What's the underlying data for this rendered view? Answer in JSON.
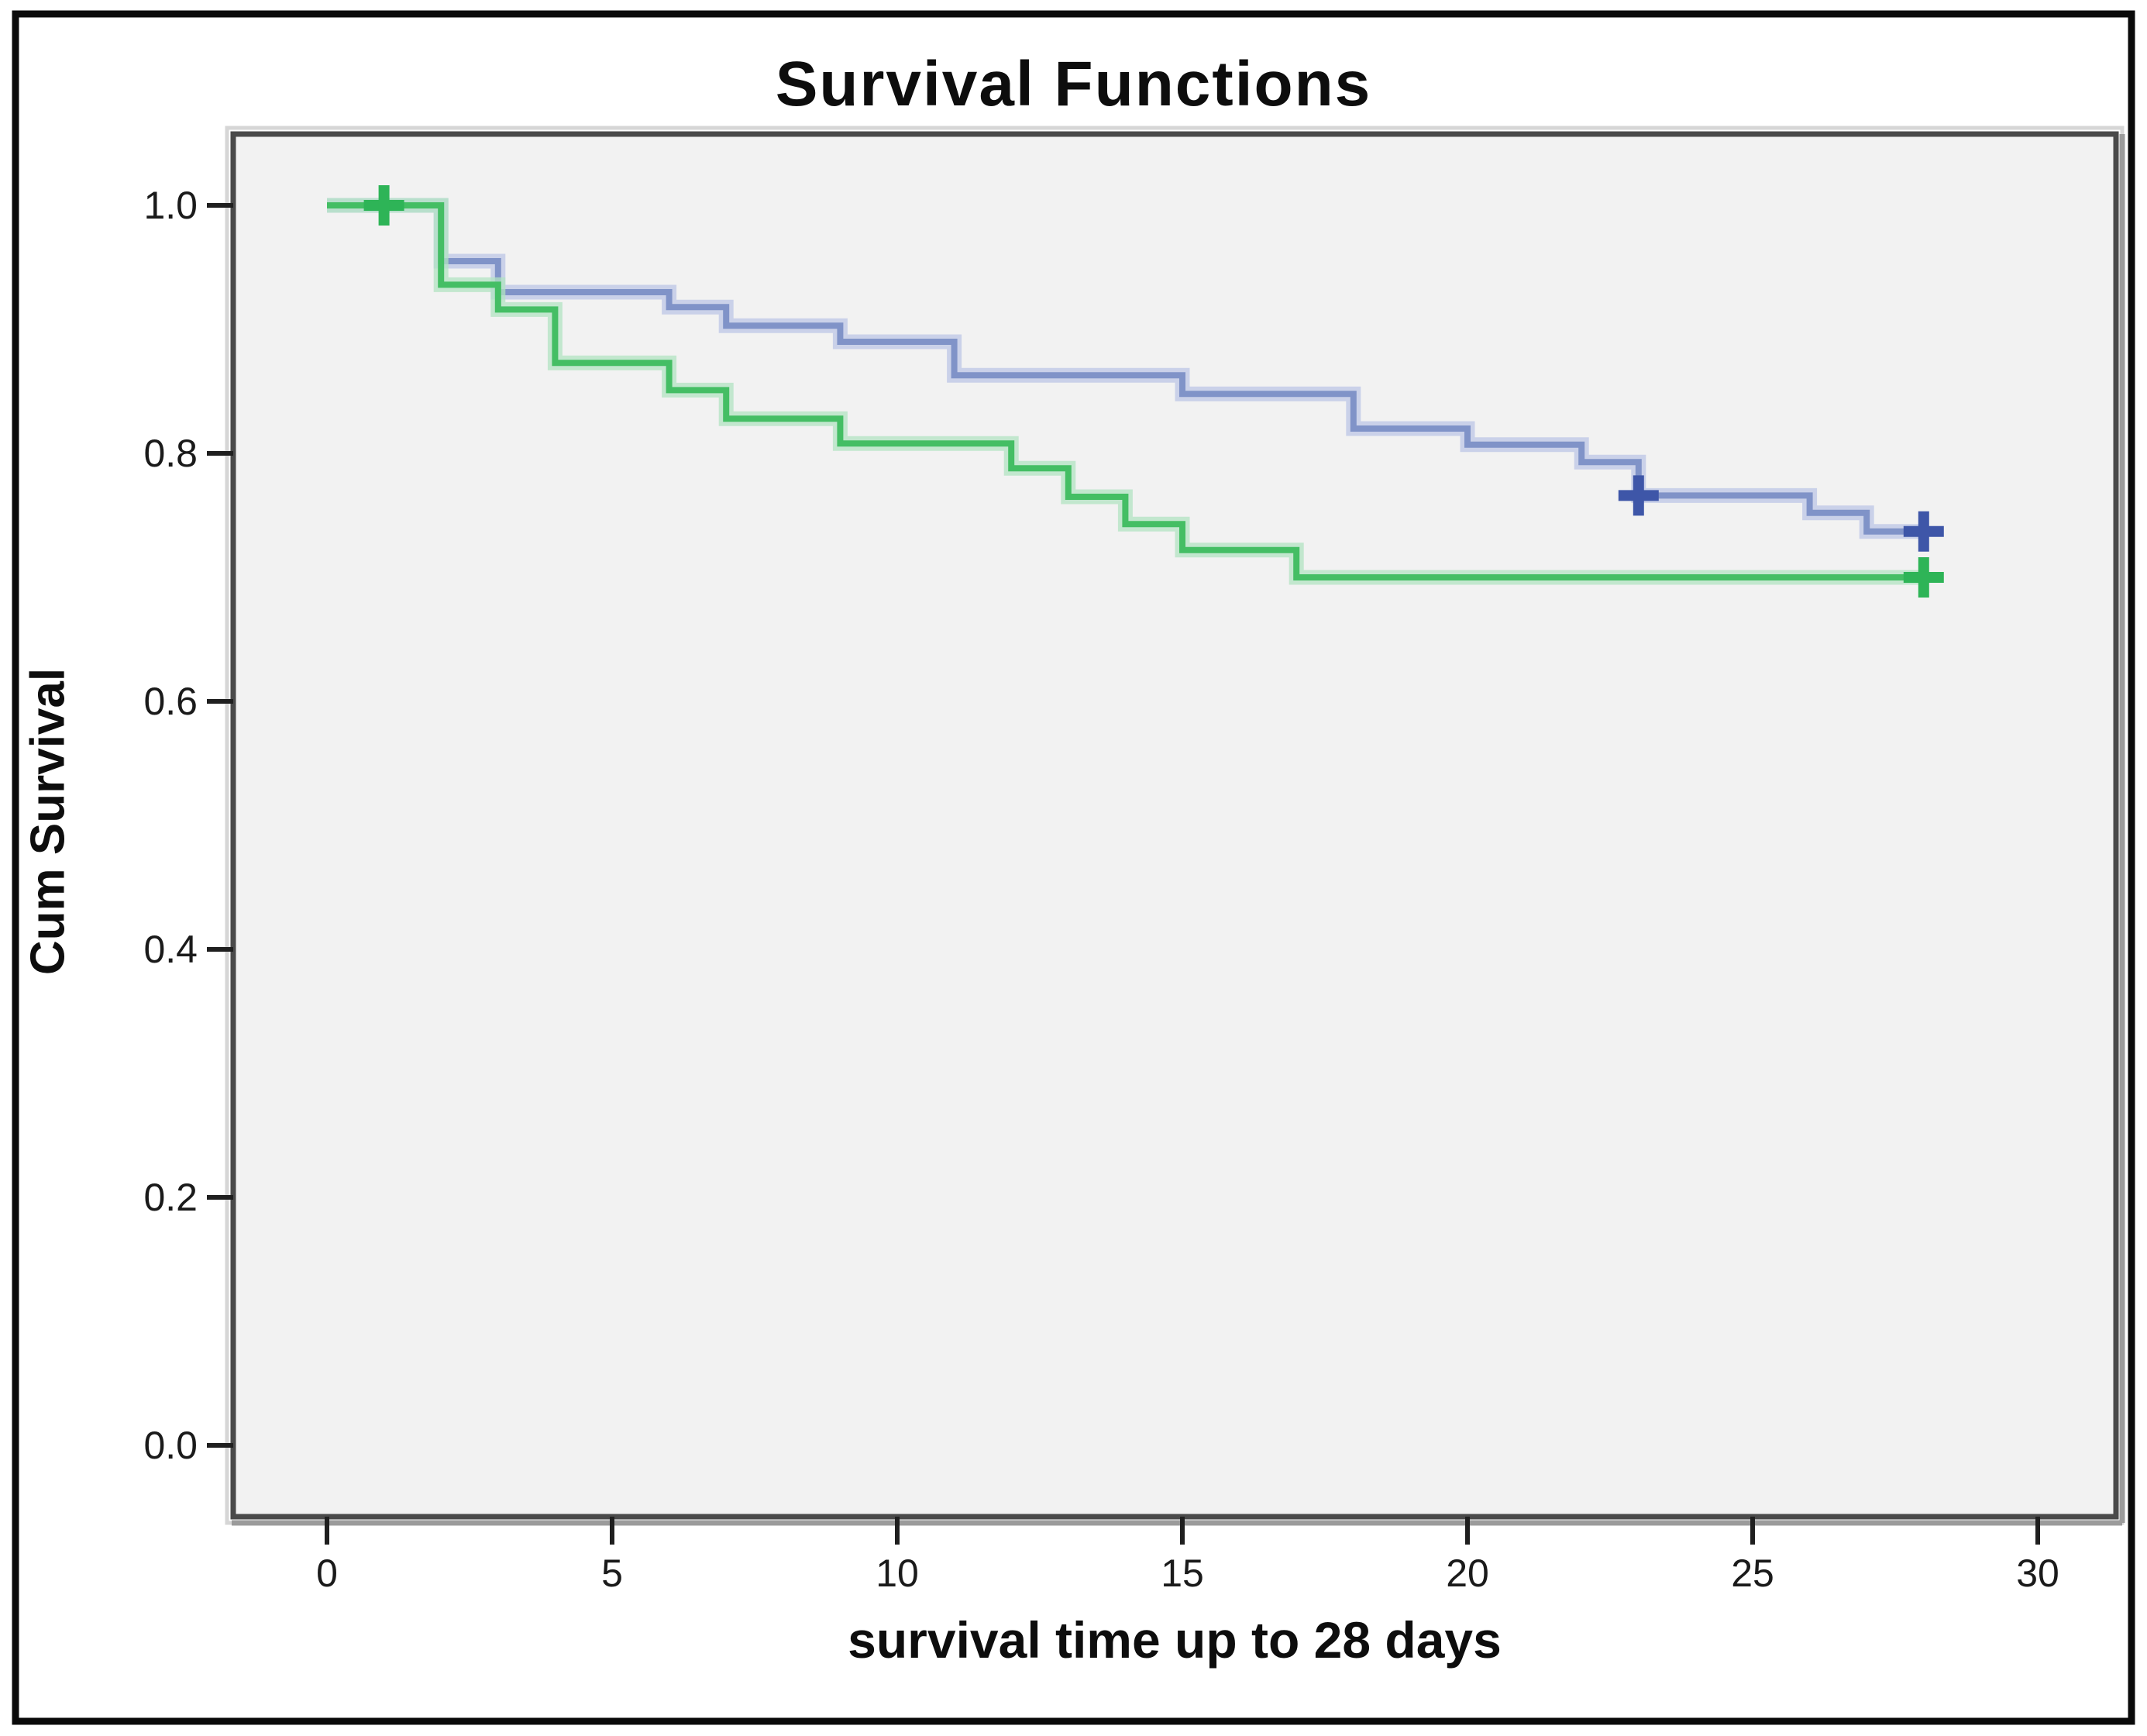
{
  "figure": {
    "title": "Survival Functions",
    "x_axis_title": "survival time up to 28 days",
    "y_axis_title": "Cum Survival"
  },
  "axes": {
    "x": {
      "tick_labels": [
        "0",
        "5",
        "10",
        "15",
        "20",
        "25",
        "30"
      ]
    },
    "y": {
      "tick_labels": [
        "1.0",
        "0.8",
        "0.6",
        "0.4",
        "0.2",
        "0.0"
      ]
    }
  },
  "chart_data": {
    "type": "line",
    "subtype": "kaplan-meier-step",
    "title": "Survival Functions",
    "xlabel": "survival time up to 28 days",
    "ylabel": "Cum Survival",
    "xlim": [
      -1.65,
      31.4
    ],
    "ylim": [
      -0.06,
      1.06
    ],
    "x_ticks": [
      0,
      5,
      10,
      15,
      20,
      25,
      30
    ],
    "y_ticks": [
      1.0,
      0.8,
      0.6,
      0.4,
      0.2,
      0.0
    ],
    "grid": false,
    "legend": "none",
    "series": [
      {
        "name": "group-1-blue",
        "line_color": "#8093c8",
        "halo_color": "#bcc6e6",
        "censor_color": "#3e56a8",
        "steps": [
          [
            0,
            1.0
          ],
          [
            2,
            0.955
          ],
          [
            3,
            0.93
          ],
          [
            6,
            0.918
          ],
          [
            7,
            0.903
          ],
          [
            9,
            0.89
          ],
          [
            11,
            0.863
          ],
          [
            15,
            0.848
          ],
          [
            18,
            0.82
          ],
          [
            20,
            0.807
          ],
          [
            22,
            0.793
          ],
          [
            23,
            0.766
          ],
          [
            26,
            0.752
          ],
          [
            27,
            0.737
          ]
        ],
        "end_day": 28,
        "censors": [
          [
            23,
            0.766
          ],
          [
            28,
            0.737
          ]
        ]
      },
      {
        "name": "group-2-green",
        "line_color": "#44be64",
        "halo_color": "#b2e3c1",
        "censor_color": "#2eb457",
        "steps": [
          [
            0,
            1.0
          ],
          [
            2,
            0.936
          ],
          [
            3,
            0.916
          ],
          [
            4,
            0.873
          ],
          [
            6,
            0.851
          ],
          [
            7,
            0.828
          ],
          [
            9,
            0.808
          ],
          [
            12,
            0.788
          ],
          [
            13,
            0.765
          ],
          [
            14,
            0.743
          ],
          [
            15,
            0.722
          ],
          [
            17,
            0.7
          ]
        ],
        "end_day": 28,
        "censors": [
          [
            1,
            1.0
          ],
          [
            28,
            0.7
          ]
        ]
      }
    ]
  },
  "colors": {
    "page_background": "#ffffff",
    "outer_border": "#0a0a0a",
    "plot_background": "#f2f2f2",
    "frame_dark": "#4a4a4a",
    "frame_light_top": "#d6d6d6",
    "frame_shadow_bottom": "#9b9b9b",
    "tick_mark": "#1f1f1f",
    "tick_label": "#1a1a1a"
  }
}
